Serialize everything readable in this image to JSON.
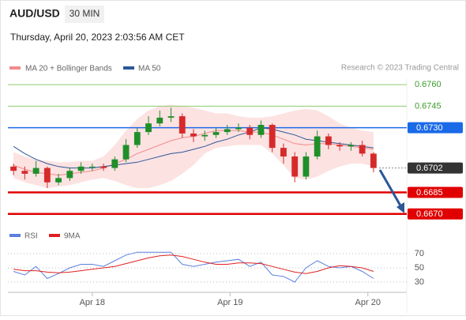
{
  "header": {
    "symbol": "AUD/USD",
    "interval": "30 MIN",
    "timestamp": "Thursday, April 20, 2023 2:03:56 AM CET"
  },
  "chart_data": [
    {
      "type": "candlestick",
      "source": "Research © 2023 Trading Central",
      "up_color": "#1f8f2a",
      "down_color": "#d62a2a",
      "candles": {
        "open": [
          0.6703,
          0.67,
          0.6698,
          0.6702,
          0.6692,
          0.6695,
          0.67,
          0.6703,
          0.6703,
          0.6702,
          0.6708,
          0.6718,
          0.6727,
          0.6733,
          0.6737,
          0.6738,
          0.6726,
          0.6724,
          0.6725,
          0.6727,
          0.6729,
          0.673,
          0.6725,
          0.6732,
          0.6716,
          0.671,
          0.6696,
          0.671,
          0.6724,
          0.6718,
          0.6717,
          0.6718,
          0.6712
        ],
        "high": [
          0.6705,
          0.6703,
          0.6707,
          0.6703,
          0.6698,
          0.6702,
          0.6706,
          0.6705,
          0.6705,
          0.671,
          0.6722,
          0.673,
          0.6738,
          0.6742,
          0.6744,
          0.674,
          0.6729,
          0.6728,
          0.673,
          0.6732,
          0.6733,
          0.6732,
          0.6735,
          0.6733,
          0.6719,
          0.6713,
          0.6713,
          0.6728,
          0.6726,
          0.672,
          0.672,
          0.6721,
          0.6713
        ],
        "low": [
          0.6697,
          0.6694,
          0.6696,
          0.6688,
          0.669,
          0.6693,
          0.6698,
          0.67,
          0.67,
          0.67,
          0.6706,
          0.6716,
          0.6725,
          0.6731,
          0.6734,
          0.6723,
          0.672,
          0.6721,
          0.6723,
          0.6725,
          0.6727,
          0.6722,
          0.6723,
          0.6713,
          0.6705,
          0.6692,
          0.6694,
          0.6708,
          0.6715,
          0.6714,
          0.6714,
          0.671,
          0.6699
        ],
        "close": [
          0.67,
          0.6698,
          0.6702,
          0.6692,
          0.6695,
          0.67,
          0.6703,
          0.6703,
          0.6702,
          0.6708,
          0.6718,
          0.6727,
          0.6733,
          0.6737,
          0.6738,
          0.6726,
          0.6724,
          0.6725,
          0.6727,
          0.6729,
          0.673,
          0.6725,
          0.6732,
          0.6716,
          0.671,
          0.6696,
          0.671,
          0.6724,
          0.6718,
          0.6717,
          0.6718,
          0.6712,
          0.6702
        ]
      },
      "bands": {
        "name": "MA 20 + Bollinger Bands",
        "color": "#f28b8b",
        "fill": "#fde2e2",
        "upper": [
          0.6713,
          0.671,
          0.6708,
          0.6707,
          0.6706,
          0.6706,
          0.6707,
          0.6707,
          0.671,
          0.6718,
          0.6728,
          0.6736,
          0.6742,
          0.6745,
          0.6746,
          0.6745,
          0.6744,
          0.6742,
          0.674,
          0.674,
          0.6738,
          0.6737,
          0.6737,
          0.6738,
          0.674,
          0.6742,
          0.6743,
          0.6742,
          0.6738,
          0.6733,
          0.673,
          0.6728,
          0.6727
        ],
        "middle": [
          0.6704,
          0.6701,
          0.6699,
          0.6698,
          0.6697,
          0.6698,
          0.6699,
          0.67,
          0.6702,
          0.6705,
          0.6708,
          0.6712,
          0.6715,
          0.6718,
          0.6721,
          0.6723,
          0.6724,
          0.6726,
          0.6728,
          0.6728,
          0.6728,
          0.6727,
          0.6727,
          0.6725,
          0.6722,
          0.6719,
          0.6718,
          0.6719,
          0.6719,
          0.6718,
          0.6717,
          0.6716,
          0.6715
        ],
        "lower": [
          0.6695,
          0.6692,
          0.669,
          0.6688,
          0.6689,
          0.669,
          0.6692,
          0.6694,
          0.6695,
          0.6693,
          0.669,
          0.6688,
          0.6688,
          0.669,
          0.6693,
          0.6698,
          0.6704,
          0.6712,
          0.6716,
          0.6717,
          0.6718,
          0.6718,
          0.6718,
          0.6712,
          0.6704,
          0.6695,
          0.6694,
          0.6696,
          0.67,
          0.6703,
          0.6705,
          0.6705,
          0.6703
        ]
      },
      "series": [
        {
          "name": "MA 50",
          "color": "#2b5797",
          "values": [
            0.6717,
            0.6712,
            0.6708,
            0.6705,
            0.6703,
            0.6702,
            0.6702,
            0.6702,
            0.6703,
            0.6704,
            0.6705,
            0.6706,
            0.6708,
            0.671,
            0.6712,
            0.6713,
            0.6715,
            0.6717,
            0.672,
            0.6722,
            0.6725,
            0.6727,
            0.673,
            0.6729,
            0.6727,
            0.6725,
            0.6722,
            0.6721,
            0.672,
            0.6719,
            0.6718,
            0.6717,
            0.6716
          ]
        }
      ],
      "levels": [
        {
          "value": 0.676,
          "label": "0.6760",
          "color": "#8ccb6e",
          "style": "plain"
        },
        {
          "value": 0.6745,
          "label": "0.6745",
          "color": "#8ccb6e",
          "style": "plain"
        },
        {
          "value": 0.673,
          "label": "0.6730",
          "color": "#1a6ae8",
          "style": "box"
        },
        {
          "value": 0.6702,
          "label": "0.6702",
          "color": "#333333",
          "style": "current"
        },
        {
          "value": 0.6685,
          "label": "0.6685",
          "color": "#e00000",
          "style": "box"
        },
        {
          "value": 0.667,
          "label": "0.6670",
          "color": "#e00000",
          "style": "box"
        }
      ],
      "ylim": [
        0.666,
        0.6765
      ],
      "xlim": [
        -0.5,
        32.5
      ],
      "xticks": [
        {
          "value": 7,
          "label": "Apr 18"
        },
        {
          "value": 19.25,
          "label": "Apr 19"
        },
        {
          "value": 31.5,
          "label": "Apr 20"
        }
      ]
    },
    {
      "type": "line",
      "series": [
        {
          "name": "RSI",
          "color": "#5b7fe0",
          "values": [
            45,
            40,
            52,
            35,
            42,
            50,
            55,
            55,
            52,
            60,
            68,
            72,
            72,
            72,
            72,
            55,
            52,
            55,
            58,
            60,
            62,
            52,
            58,
            40,
            38,
            30,
            50,
            60,
            52,
            50,
            52,
            45,
            35
          ]
        },
        {
          "name": "9MA",
          "color": "#e02020",
          "values": [
            48,
            46,
            46,
            44,
            43,
            44,
            46,
            48,
            50,
            52,
            56,
            60,
            64,
            67,
            68,
            66,
            62,
            58,
            55,
            55,
            57,
            57,
            56,
            52,
            48,
            44,
            42,
            45,
            50,
            53,
            52,
            50,
            45
          ]
        }
      ],
      "ylim": [
        25,
        75
      ],
      "yticks": [
        30,
        50,
        70
      ],
      "xlim": [
        -0.5,
        32.5
      ]
    }
  ]
}
